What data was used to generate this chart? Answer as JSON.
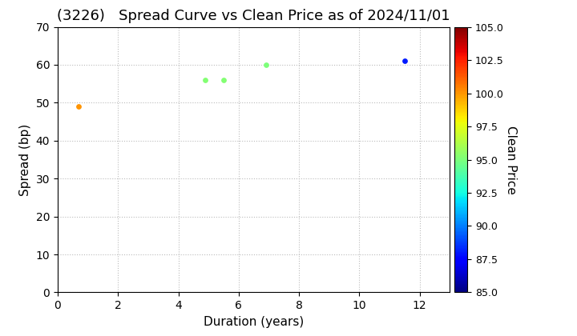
{
  "title": "(3226)   Spread Curve vs Clean Price as of 2024/11/01",
  "xlabel": "Duration (years)",
  "ylabel": "Spread (bp)",
  "colorbar_label": "Clean Price",
  "xlim": [
    0,
    13
  ],
  "ylim": [
    0,
    70
  ],
  "xticks": [
    0,
    2,
    4,
    6,
    8,
    10,
    12
  ],
  "yticks": [
    0,
    10,
    20,
    30,
    40,
    50,
    60,
    70
  ],
  "colorbar_min": 85.0,
  "colorbar_max": 105.0,
  "colorbar_ticks": [
    85.0,
    87.5,
    90.0,
    92.5,
    95.0,
    97.5,
    100.0,
    102.5,
    105.0
  ],
  "points": [
    {
      "duration": 0.7,
      "spread": 49,
      "clean_price": 100.0
    },
    {
      "duration": 4.9,
      "spread": 56,
      "clean_price": 95.2
    },
    {
      "duration": 5.5,
      "spread": 56,
      "clean_price": 95.2
    },
    {
      "duration": 6.9,
      "spread": 60,
      "clean_price": 95.0
    },
    {
      "duration": 11.5,
      "spread": 61,
      "clean_price": 88.0
    }
  ],
  "marker_size": 15,
  "grid_color": "#bbbbbb",
  "grid_style": "dotted",
  "background_color": "#ffffff",
  "title_fontsize": 13,
  "axis_fontsize": 11,
  "title_fontweight": "normal"
}
